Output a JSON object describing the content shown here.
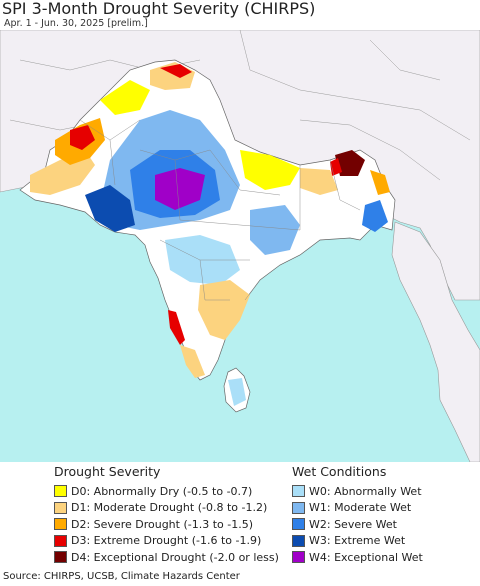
{
  "title": "SPI 3-Month Drought Severity (CHIRPS)",
  "subtitle": "Apr. 1 - Jun. 30, 2025 [prelim.]",
  "legend": {
    "drought": {
      "heading": "Drought Severity",
      "items": [
        {
          "label": "D0: Abnormally Dry (-0.5 to -0.7)",
          "color": "#ffff00"
        },
        {
          "label": "D1: Moderate Drought (-0.8 to -1.2)",
          "color": "#fcd37f"
        },
        {
          "label": "D2: Severe Drought (-1.3 to -1.5)",
          "color": "#ffaa00"
        },
        {
          "label": "D3: Extreme Drought (-1.6 to -1.9)",
          "color": "#e60000"
        },
        {
          "label": "D4: Exceptional Drought (-2.0 or less)",
          "color": "#730000"
        }
      ]
    },
    "wet": {
      "heading": "Wet Conditions",
      "items": [
        {
          "label": "W0: Abnormally Wet",
          "color": "#aadff8"
        },
        {
          "label": "W1: Moderate Wet",
          "color": "#7fb8f0"
        },
        {
          "label": "W2: Severe Wet",
          "color": "#2f80e8"
        },
        {
          "label": "W3: Extreme Wet",
          "color": "#0c4cb0"
        },
        {
          "label": "W4: Exceptional Wet",
          "color": "#a000c8"
        }
      ]
    }
  },
  "map_colors": {
    "ocean": "#b7f0f0",
    "land": "#f2eff4",
    "no_anomaly": "#ffffff"
  },
  "source": "Source: CHIRPS, UCSB, Climate Hazards Center"
}
